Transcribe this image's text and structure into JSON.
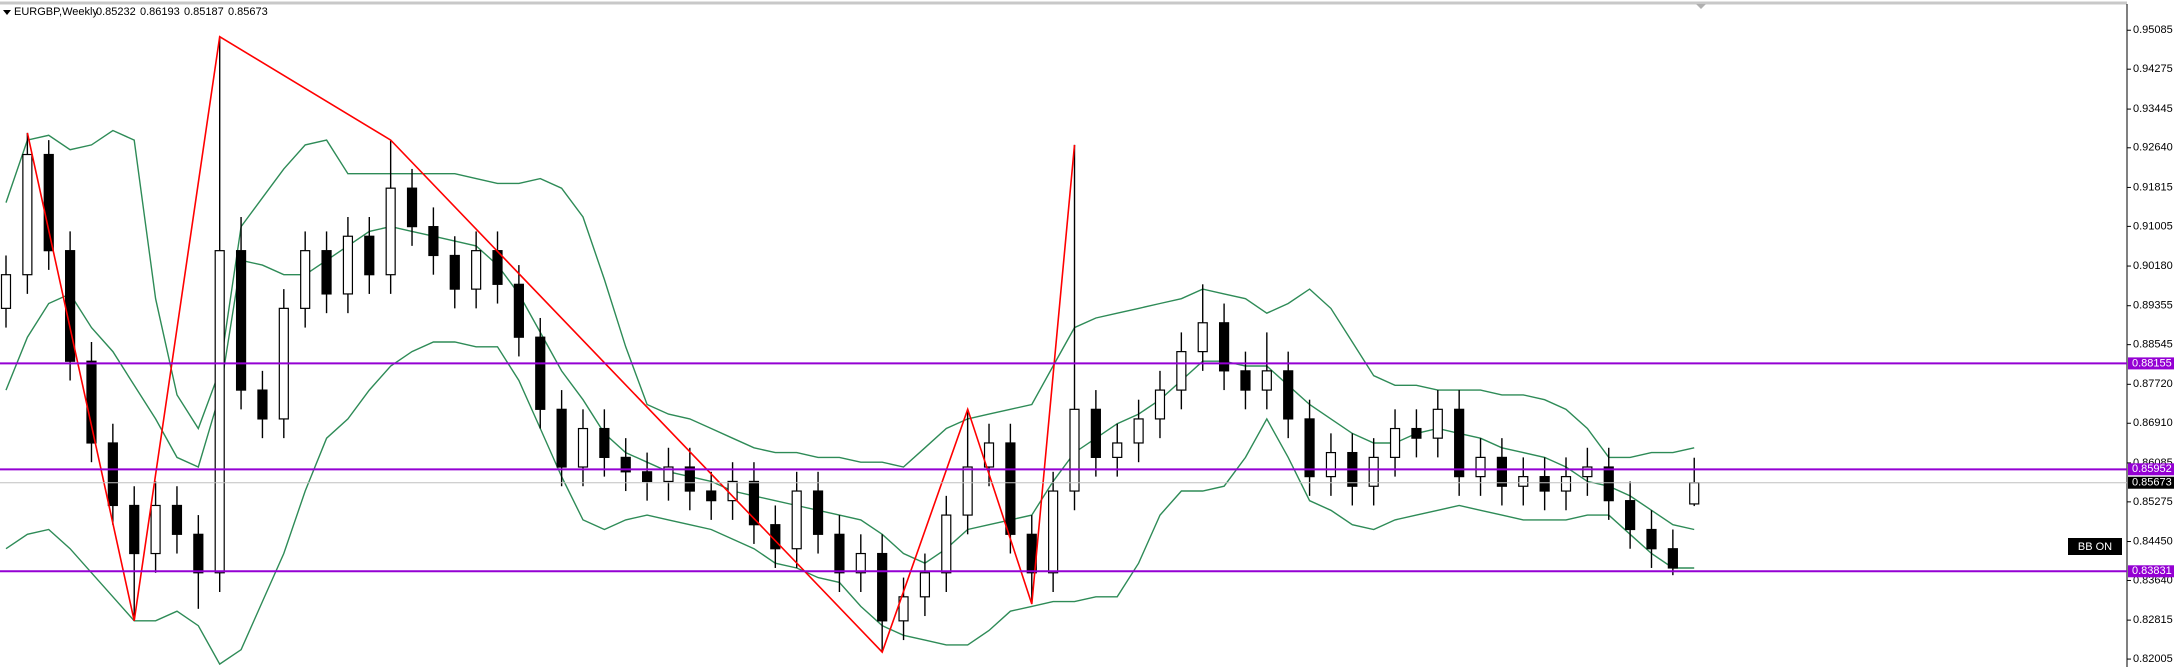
{
  "chart_data": {
    "type": "candlestick",
    "title": "EURGBP,Weekly",
    "indicator_label": "BB ON",
    "ylim": [
      0.8184,
      0.9561
    ],
    "yticks": [
      0.95085,
      0.94275,
      0.93445,
      {
        "value": 0.9264,
        "label": "0.92640"
      },
      0.91815,
      0.91005,
      {
        "value": 0.9018,
        "label": "0.90180"
      },
      0.89355,
      0.88545,
      {
        "value": 0.8772,
        "label": "0.87720"
      },
      {
        "value": 0.8691,
        "label": "0.86910"
      },
      0.86085,
      0.85275,
      {
        "value": 0.8445,
        "label": "0.84450"
      },
      {
        "value": 0.8364,
        "label": "0.83640"
      },
      0.82815,
      0.82005
    ],
    "up_color": "#ffffff",
    "down_color": "#000000",
    "open": [
      0.893,
      0.9,
      0.925,
      0.905,
      0.882,
      0.865,
      0.852,
      0.842,
      0.852,
      0.846,
      0.838,
      0.905,
      0.876,
      0.87,
      0.893,
      0.905,
      0.896,
      0.908,
      0.9,
      0.918,
      0.91,
      0.904,
      0.897,
      0.905,
      0.898,
      0.887,
      0.872,
      0.86,
      0.868,
      0.862,
      0.859,
      0.857,
      0.86,
      0.855,
      0.853,
      0.857,
      0.848,
      0.843,
      0.855,
      0.846,
      0.838,
      0.842,
      0.828,
      0.833,
      0.838,
      0.85,
      0.86,
      0.865,
      0.846,
      0.838,
      0.855,
      0.872,
      0.862,
      0.865,
      0.87,
      0.876,
      0.884,
      0.89,
      0.88,
      0.876,
      0.88,
      0.87,
      0.858,
      0.863,
      0.856,
      0.862,
      0.868,
      0.866,
      0.872,
      0.858,
      0.862,
      0.856,
      0.858,
      0.855,
      0.858,
      0.86,
      0.853,
      0.847,
      0.843,
      0.85232
    ],
    "high": [
      0.904,
      0.9295,
      0.928,
      0.909,
      0.886,
      0.869,
      0.856,
      0.857,
      0.856,
      0.85,
      0.9495,
      0.912,
      0.88,
      0.897,
      0.909,
      0.909,
      0.912,
      0.912,
      0.928,
      0.922,
      0.914,
      0.908,
      0.909,
      0.909,
      0.902,
      0.891,
      0.876,
      0.872,
      0.872,
      0.866,
      0.863,
      0.864,
      0.864,
      0.859,
      0.861,
      0.861,
      0.852,
      0.859,
      0.859,
      0.85,
      0.846,
      0.846,
      0.837,
      0.842,
      0.854,
      0.872,
      0.869,
      0.869,
      0.85,
      0.859,
      0.927,
      0.876,
      0.869,
      0.874,
      0.88,
      0.888,
      0.898,
      0.894,
      0.884,
      0.888,
      0.884,
      0.874,
      0.867,
      0.867,
      0.866,
      0.872,
      0.872,
      0.876,
      0.876,
      0.866,
      0.866,
      0.862,
      0.862,
      0.862,
      0.864,
      0.864,
      0.857,
      0.851,
      0.847,
      0.86193
    ],
    "low": [
      0.889,
      0.896,
      0.901,
      0.878,
      0.861,
      0.848,
      0.828,
      0.838,
      0.842,
      0.8305,
      0.834,
      0.872,
      0.866,
      0.866,
      0.889,
      0.892,
      0.892,
      0.896,
      0.896,
      0.906,
      0.9,
      0.893,
      0.893,
      0.894,
      0.883,
      0.868,
      0.856,
      0.856,
      0.858,
      0.855,
      0.853,
      0.853,
      0.851,
      0.849,
      0.849,
      0.844,
      0.839,
      0.839,
      0.842,
      0.834,
      0.834,
      0.8215,
      0.824,
      0.829,
      0.834,
      0.846,
      0.856,
      0.842,
      0.8315,
      0.834,
      0.851,
      0.858,
      0.858,
      0.861,
      0.866,
      0.872,
      0.88,
      0.876,
      0.872,
      0.872,
      0.866,
      0.854,
      0.854,
      0.852,
      0.852,
      0.858,
      0.862,
      0.862,
      0.854,
      0.854,
      0.852,
      0.852,
      0.851,
      0.851,
      0.854,
      0.849,
      0.843,
      0.839,
      0.8375,
      0.85187
    ],
    "close": [
      0.9,
      0.925,
      0.905,
      0.882,
      0.865,
      0.852,
      0.842,
      0.852,
      0.846,
      0.838,
      0.905,
      0.876,
      0.87,
      0.893,
      0.905,
      0.896,
      0.908,
      0.9,
      0.918,
      0.91,
      0.904,
      0.897,
      0.905,
      0.898,
      0.887,
      0.872,
      0.86,
      0.868,
      0.862,
      0.859,
      0.857,
      0.86,
      0.855,
      0.853,
      0.857,
      0.848,
      0.843,
      0.855,
      0.846,
      0.838,
      0.842,
      0.828,
      0.833,
      0.838,
      0.85,
      0.86,
      0.865,
      0.846,
      0.838,
      0.855,
      0.872,
      0.862,
      0.865,
      0.87,
      0.876,
      0.884,
      0.89,
      0.88,
      0.876,
      0.88,
      0.87,
      0.858,
      0.863,
      0.856,
      0.862,
      0.868,
      0.866,
      0.872,
      0.858,
      0.862,
      0.856,
      0.858,
      0.855,
      0.858,
      0.86,
      0.853,
      0.847,
      0.843,
      0.839,
      0.85673
    ],
    "bands": [
      {
        "color": "#2e8b57",
        "values": [
          0.915,
          0.928,
          0.929,
          0.926,
          0.927,
          0.93,
          0.928,
          0.895,
          0.875,
          0.868,
          0.88,
          0.91,
          0.916,
          0.922,
          0.927,
          0.928,
          0.921,
          0.921,
          0.921,
          0.921,
          0.921,
          0.921,
          0.92,
          0.919,
          0.919,
          0.92,
          0.918,
          0.912,
          0.899,
          0.885,
          0.873,
          0.871,
          0.87,
          0.868,
          0.866,
          0.864,
          0.863,
          0.863,
          0.862,
          0.862,
          0.861,
          0.861,
          0.86,
          0.864,
          0.868,
          0.87,
          0.871,
          0.872,
          0.873,
          0.881,
          0.889,
          0.891,
          0.892,
          0.893,
          0.894,
          0.895,
          0.897,
          0.896,
          0.895,
          0.892,
          0.894,
          0.897,
          0.893,
          0.886,
          0.879,
          0.877,
          0.877,
          0.876,
          0.876,
          0.876,
          0.875,
          0.875,
          0.874,
          0.872,
          0.868,
          0.862,
          0.862,
          0.863,
          0.863,
          0.864
        ]
      },
      {
        "color": "#2e8b57",
        "values": [
          0.876,
          0.887,
          0.894,
          0.896,
          0.889,
          0.884,
          0.877,
          0.87,
          0.862,
          0.86,
          0.875,
          0.903,
          0.902,
          0.9,
          0.9,
          0.903,
          0.906,
          0.909,
          0.91,
          0.909,
          0.908,
          0.907,
          0.906,
          0.902,
          0.896,
          0.888,
          0.88,
          0.874,
          0.867,
          0.863,
          0.861,
          0.859,
          0.858,
          0.857,
          0.855,
          0.854,
          0.853,
          0.852,
          0.851,
          0.85,
          0.849,
          0.846,
          0.842,
          0.84,
          0.843,
          0.847,
          0.848,
          0.849,
          0.85,
          0.857,
          0.863,
          0.866,
          0.869,
          0.871,
          0.874,
          0.878,
          0.882,
          0.882,
          0.881,
          0.881,
          0.877,
          0.873,
          0.87,
          0.867,
          0.865,
          0.865,
          0.867,
          0.868,
          0.867,
          0.866,
          0.864,
          0.863,
          0.862,
          0.86,
          0.857,
          0.856,
          0.854,
          0.851,
          0.848,
          0.847
        ]
      },
      {
        "color": "#2e8b57",
        "values": [
          0.843,
          0.846,
          0.847,
          0.843,
          0.838,
          0.833,
          0.828,
          0.828,
          0.83,
          0.827,
          0.819,
          0.822,
          0.832,
          0.842,
          0.855,
          0.866,
          0.87,
          0.876,
          0.881,
          0.884,
          0.886,
          0.886,
          0.885,
          0.885,
          0.878,
          0.868,
          0.858,
          0.849,
          0.847,
          0.849,
          0.85,
          0.849,
          0.848,
          0.847,
          0.845,
          0.843,
          0.84,
          0.839,
          0.837,
          0.836,
          0.831,
          0.827,
          0.825,
          0.824,
          0.823,
          0.823,
          0.826,
          0.83,
          0.831,
          0.832,
          0.832,
          0.833,
          0.833,
          0.84,
          0.85,
          0.855,
          0.855,
          0.856,
          0.862,
          0.87,
          0.862,
          0.853,
          0.851,
          0.848,
          0.847,
          0.849,
          0.85,
          0.851,
          0.852,
          0.851,
          0.85,
          0.849,
          0.849,
          0.849,
          0.85,
          0.85,
          0.846,
          0.842,
          0.839,
          0.839
        ]
      }
    ],
    "zigzag": {
      "color": "#ff0000",
      "x": [
        1,
        6,
        10,
        18,
        41,
        45,
        48,
        50
      ],
      "values": [
        0.9295,
        0.828,
        0.9495,
        0.928,
        0.8215,
        0.872,
        0.8315,
        0.927
      ]
    },
    "levels": {
      "color": "#9400d3",
      "values": [
        0.88155,
        0.85952,
        0.83831
      ]
    }
  }
}
